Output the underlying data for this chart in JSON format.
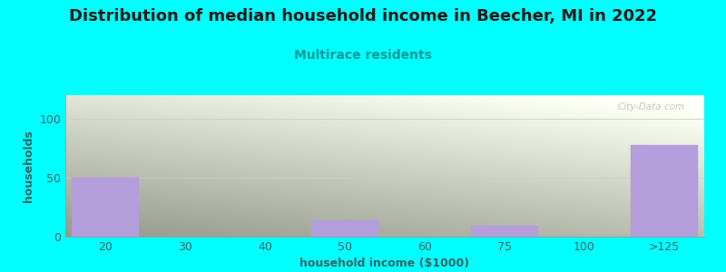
{
  "title": "Distribution of median household income in Beecher, MI in 2022",
  "subtitle": "Multirace residents",
  "xlabel": "household income ($1000)",
  "ylabel": "households",
  "background_color": "#00FFFF",
  "bar_color": "#b39ddb",
  "categories": [
    "20",
    "30",
    "40",
    "50",
    "60",
    "75",
    "100",
    ">125"
  ],
  "values": [
    50,
    0,
    0,
    14,
    0,
    9,
    0,
    78
  ],
  "ylim": [
    0,
    120
  ],
  "yticks": [
    0,
    50,
    100
  ],
  "watermark": "City-Data.com",
  "title_color": "#1a1a1a",
  "subtitle_color": "#009999",
  "axis_label_color": "#336666",
  "tick_color": "#336666",
  "grid_color": "#cccccc",
  "title_fontsize": 13,
  "subtitle_fontsize": 10,
  "axis_label_fontsize": 9,
  "tick_fontsize": 9,
  "gradient_top": "#f0f8f0",
  "gradient_bottom": "#ffffff",
  "gradient_topleft": "#d4eed4"
}
